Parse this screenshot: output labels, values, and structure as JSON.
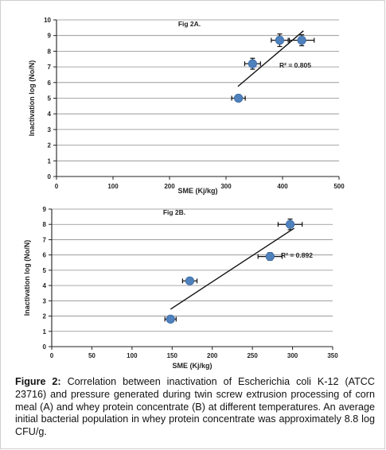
{
  "chart_data": [
    {
      "type": "scatter",
      "title": "Fig 2A.",
      "xlabel": "SME (Kj/kg)",
      "ylabel": "Inactivation log (No/N)",
      "xlim": [
        0,
        500
      ],
      "ylim": [
        0,
        10
      ],
      "xticks": [
        "0",
        "100",
        "200",
        "300",
        "400",
        "500"
      ],
      "yticks": [
        "0",
        "1",
        "2",
        "3",
        "4",
        "5",
        "6",
        "7",
        "8",
        "9",
        "10"
      ],
      "r2_label": "R² = 0.805",
      "grid": "horizontal",
      "points": [
        {
          "x": 322,
          "y": 5.0,
          "xerr": 12,
          "yerr": 0.15
        },
        {
          "x": 347,
          "y": 7.2,
          "xerr": 14,
          "yerr": 0.35
        },
        {
          "x": 395,
          "y": 8.7,
          "xerr": 15,
          "yerr": 0.4
        },
        {
          "x": 434,
          "y": 8.7,
          "xerr": 22,
          "yerr": 0.35
        }
      ],
      "trendline": {
        "x": [
          321,
          437
        ],
        "y": [
          5.75,
          9.3
        ]
      },
      "marker_color": "#4f81bd"
    },
    {
      "type": "scatter",
      "title": "Fig 2B.",
      "xlabel": "SME (Kj/kg)",
      "ylabel": "Inactivation log (No/N)",
      "xlim": [
        0,
        350
      ],
      "ylim": [
        0,
        9
      ],
      "xticks": [
        "0",
        "50",
        "100",
        "150",
        "200",
        "250",
        "300",
        "350"
      ],
      "yticks": [
        "0",
        "1",
        "2",
        "3",
        "4",
        "5",
        "6",
        "7",
        "8",
        "9"
      ],
      "r2_label": "R² = 0.892",
      "grid": "horizontal",
      "points": [
        {
          "x": 148,
          "y": 1.8,
          "xerr": 7,
          "yerr": 0.1
        },
        {
          "x": 172,
          "y": 4.3,
          "xerr": 9,
          "yerr": 0.1
        },
        {
          "x": 272,
          "y": 5.9,
          "xerr": 15,
          "yerr": 0.25
        },
        {
          "x": 297,
          "y": 8.0,
          "xerr": 15,
          "yerr": 0.35
        }
      ],
      "trendline": {
        "x": [
          148,
          302
        ],
        "y": [
          2.45,
          7.75
        ]
      },
      "marker_color": "#4f81bd"
    }
  ],
  "caption": {
    "label": "Figure 2:",
    "text": "Correlation between inactivation of Escherichia coli K-12 (ATCC 23716) and pressure generated during twin screw extrusion processing of corn meal (A) and whey protein concentrate (B) at different temperatures. An average initial bacterial population in whey protein concentrate was approximately 8.8 log CFU/g."
  }
}
